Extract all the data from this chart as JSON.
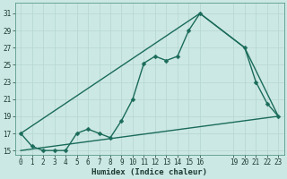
{
  "bg_color": "#cce8e4",
  "grid_color": "#b8d8d4",
  "line_color": "#1a6b5a",
  "xlabel": "Humidex (Indice chaleur)",
  "xlim": [
    -0.5,
    23.5
  ],
  "ylim": [
    14.5,
    32.2
  ],
  "yticks": [
    15,
    17,
    19,
    21,
    23,
    25,
    27,
    29,
    31
  ],
  "xticks": [
    0,
    1,
    2,
    3,
    4,
    5,
    6,
    7,
    8,
    9,
    10,
    11,
    12,
    13,
    14,
    15,
    16,
    19,
    20,
    21,
    22,
    23
  ],
  "line1_x": [
    0,
    1,
    2,
    3,
    4,
    5,
    6,
    7,
    8,
    9,
    10,
    11,
    12,
    13,
    14,
    15,
    16,
    20,
    21,
    22,
    23
  ],
  "line1_y": [
    17,
    15.5,
    15,
    15,
    15,
    17,
    17.5,
    17,
    16.5,
    18.5,
    21,
    25.2,
    26,
    25.5,
    26,
    29,
    31,
    27,
    23,
    20.5,
    19
  ],
  "line2_x": [
    0,
    16,
    20,
    23
  ],
  "line2_y": [
    17,
    31,
    27,
    19
  ],
  "line3_x": [
    0,
    23
  ],
  "line3_y": [
    15,
    19
  ],
  "markersize": 2.5,
  "linewidth": 1.0,
  "tick_fontsize": 5.5,
  "xlabel_fontsize": 6.5
}
